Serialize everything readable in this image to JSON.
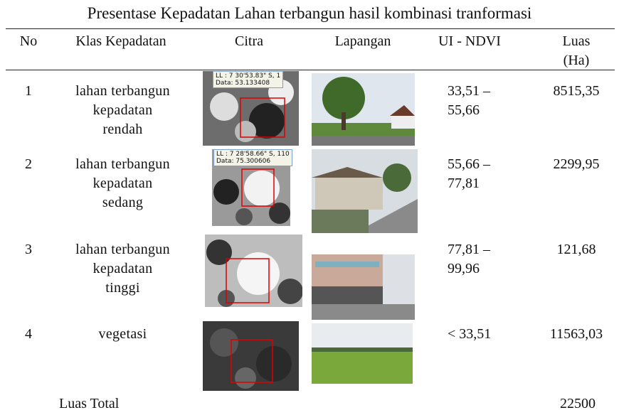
{
  "header": {
    "title": "Presentase Kepadatan Lahan terbangun hasil kombinasi  tranformasi"
  },
  "table": {
    "columns": [
      "No",
      "Klas Kepadatan",
      "Citra",
      "Lapangan",
      "UI - NDVI",
      "Luas (Ha)"
    ],
    "rows": [
      {
        "no": "1",
        "klas": [
          "lahan terbangun",
          "kepadatan",
          "rendah"
        ],
        "citra_label": [
          "LL : 7 30'53.83\" S, 1",
          "Data: 53.133408"
        ],
        "ndvi": [
          "33,51 –",
          "55,66"
        ],
        "luas": "8515,35"
      },
      {
        "no": "2",
        "klas": [
          "lahan terbangun",
          "kepadatan",
          "sedang"
        ],
        "citra_label": [
          "LL : 7 28'58.66\" S, 110",
          "Data: 75.300606"
        ],
        "ndvi": [
          "55,66 –",
          "77,81"
        ],
        "luas": "2299,95"
      },
      {
        "no": "3",
        "klas": [
          "lahan terbangun",
          "kepadatan",
          "tinggi"
        ],
        "ndvi": [
          "77,81 –",
          "99,96"
        ],
        "luas": "121,68"
      },
      {
        "no": "4",
        "klas": [
          "vegetasi"
        ],
        "ndvi": [
          "< 33,51"
        ],
        "luas": "11563,03"
      }
    ],
    "total": {
      "label": "Luas Total",
      "value": "22500"
    }
  }
}
